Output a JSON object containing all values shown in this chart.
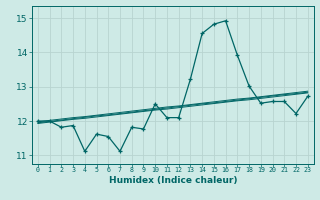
{
  "xlabel": "Humidex (Indice chaleur)",
  "ylabel": "",
  "background_color": "#ceeae6",
  "grid_color": "#b8d4d0",
  "line_color": "#006666",
  "xlim": [
    -0.5,
    23.5
  ],
  "ylim": [
    10.75,
    15.35
  ],
  "yticks": [
    11,
    12,
    13,
    14,
    15
  ],
  "xtick_labels": [
    "0",
    "1",
    "2",
    "3",
    "4",
    "5",
    "6",
    "7",
    "8",
    "9",
    "10",
    "11",
    "12",
    "13",
    "14",
    "15",
    "16",
    "17",
    "18",
    "19",
    "20",
    "21",
    "22",
    "23"
  ],
  "main_line_y": [
    12.0,
    12.0,
    11.82,
    11.87,
    11.12,
    11.62,
    11.55,
    11.12,
    11.82,
    11.77,
    12.5,
    12.1,
    12.1,
    13.22,
    14.55,
    14.82,
    14.92,
    13.92,
    13.02,
    12.52,
    12.57,
    12.57,
    12.22,
    12.72
  ],
  "smooth_line1_y": [
    11.98,
    12.02,
    12.06,
    12.1,
    12.13,
    12.17,
    12.21,
    12.25,
    12.29,
    12.33,
    12.37,
    12.41,
    12.44,
    12.48,
    12.52,
    12.56,
    12.6,
    12.64,
    12.67,
    12.71,
    12.75,
    12.79,
    12.83,
    12.87
  ],
  "smooth_line2_y": [
    11.95,
    11.99,
    12.03,
    12.07,
    12.11,
    12.15,
    12.18,
    12.22,
    12.26,
    12.3,
    12.34,
    12.38,
    12.42,
    12.46,
    12.5,
    12.53,
    12.57,
    12.61,
    12.65,
    12.69,
    12.73,
    12.77,
    12.8,
    12.84
  ],
  "smooth_line3_y": [
    11.93,
    11.97,
    12.01,
    12.05,
    12.08,
    12.12,
    12.16,
    12.2,
    12.24,
    12.28,
    12.32,
    12.35,
    12.39,
    12.43,
    12.47,
    12.51,
    12.55,
    12.59,
    12.62,
    12.66,
    12.7,
    12.74,
    12.78,
    12.82
  ]
}
